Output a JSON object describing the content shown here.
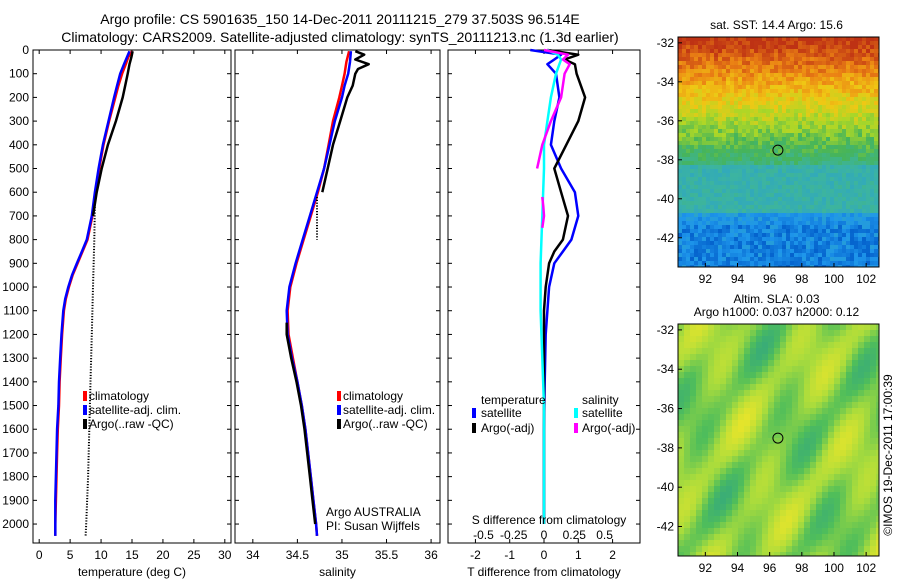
{
  "header": {
    "line1": "Argo profile: CS 5901635_150 14-Dec-2011 20111215_279 37.503S 96.514E",
    "line2": "Climatology: CARS2009. Satellite-adjusted climatology: synTS_20111213.nc (1.3d earlier)"
  },
  "credit": "©IMOS 19-Dec-2011 17:00:39",
  "colors": {
    "red": "#ff0000",
    "blue": "#0000ff",
    "black": "#000000",
    "cyan": "#00ffff",
    "magenta": "#ff00ff"
  },
  "chart_data": [
    {
      "type": "line",
      "xlabel": "temperature (deg C)",
      "ylim": [
        2080,
        0
      ],
      "xlim": [
        -1,
        31
      ],
      "xticks": [
        0,
        5,
        10,
        15,
        20,
        25,
        30
      ],
      "yticks": [
        0,
        100,
        200,
        300,
        400,
        500,
        600,
        700,
        800,
        900,
        1000,
        1100,
        1200,
        1300,
        1400,
        1500,
        1600,
        1700,
        1800,
        1900,
        2000
      ],
      "legend": [
        "climatology",
        "satellite-adj. clim.",
        "Argo(..raw -QC)"
      ],
      "series": [
        {
          "color": "red",
          "depth": [
            5,
            30,
            60,
            100,
            150,
            200,
            300,
            400,
            500,
            600,
            700,
            800,
            850,
            900,
            950,
            1000,
            1050,
            1100,
            1200,
            1300,
            1400,
            1500,
            1600,
            1700,
            1800,
            1900,
            2000,
            2050
          ],
          "values": [
            15.0,
            14.4,
            14.0,
            13.4,
            12.8,
            12.3,
            11.3,
            10.4,
            9.7,
            9.1,
            8.6,
            7.8,
            7.0,
            6.2,
            5.4,
            4.8,
            4.3,
            4.0,
            3.7,
            3.5,
            3.3,
            3.2,
            3.0,
            2.9,
            2.8,
            2.7,
            2.6,
            2.6
          ]
        },
        {
          "color": "blue",
          "depth": [
            5,
            30,
            60,
            100,
            150,
            200,
            300,
            400,
            500,
            600,
            700,
            800,
            850,
            900,
            950,
            1000,
            1050,
            1100,
            1200,
            1300,
            1400,
            1500,
            1600,
            1700,
            1800,
            1900,
            2000,
            2050
          ],
          "values": [
            14.6,
            14.2,
            13.7,
            13.1,
            12.6,
            12.1,
            11.2,
            10.3,
            9.6,
            9.0,
            8.5,
            7.7,
            6.9,
            6.1,
            5.3,
            4.7,
            4.2,
            3.9,
            3.6,
            3.4,
            3.2,
            3.1,
            2.9,
            2.8,
            2.7,
            2.6,
            2.6,
            2.6
          ]
        },
        {
          "color": "black",
          "depth": [
            5,
            30,
            60,
            100,
            150,
            200,
            300,
            400,
            500,
            600,
            700
          ],
          "values": [
            15.1,
            14.9,
            14.6,
            14.3,
            13.9,
            13.5,
            12.4,
            11.1,
            10.1,
            9.3,
            8.7
          ]
        },
        {
          "color": "black",
          "style": "dotted",
          "depth": [
            650,
            800,
            1000,
            1200,
            1400,
            1600,
            1800,
            2000,
            2050
          ],
          "values": [
            9.0,
            8.9,
            8.7,
            8.5,
            8.3,
            8.1,
            7.9,
            7.6,
            7.5
          ]
        }
      ]
    },
    {
      "type": "line",
      "xlabel": "salinity",
      "ylim": [
        2080,
        0
      ],
      "xlim": [
        33.8,
        36.1
      ],
      "xticks": [
        34,
        34.5,
        35,
        35.5,
        36
      ],
      "legend": [
        "climatology",
        "satellite-adj. clim.",
        "Argo(..raw -QC)"
      ],
      "annotation": [
        "Argo AUSTRALIA",
        "PI: Susan Wijffels"
      ],
      "series": [
        {
          "color": "red",
          "depth": [
            5,
            50,
            100,
            150,
            200,
            300,
            400,
            500,
            600,
            700,
            800,
            900,
            1000,
            1100,
            1200,
            1300,
            1400,
            1500,
            1600,
            1700,
            1800,
            1900,
            2000,
            2050
          ],
          "values": [
            35.08,
            35.05,
            35.03,
            35.0,
            34.97,
            34.9,
            34.85,
            34.8,
            34.73,
            34.65,
            34.57,
            34.49,
            34.42,
            34.39,
            34.4,
            34.45,
            34.5,
            34.55,
            34.59,
            34.62,
            34.65,
            34.68,
            34.71,
            34.72
          ]
        },
        {
          "color": "blue",
          "depth": [
            5,
            50,
            100,
            150,
            200,
            300,
            400,
            500,
            600,
            700,
            800,
            900,
            1000,
            1100,
            1200,
            1300,
            1400,
            1500,
            1600,
            1700,
            1800,
            1900,
            2000,
            2050
          ],
          "values": [
            35.1,
            35.09,
            35.07,
            35.03,
            35.0,
            34.92,
            34.86,
            34.8,
            34.72,
            34.64,
            34.56,
            34.48,
            34.41,
            34.38,
            34.39,
            34.44,
            34.5,
            34.55,
            34.59,
            34.62,
            34.65,
            34.68,
            34.71,
            34.72
          ]
        },
        {
          "color": "black",
          "depth": [
            5,
            20,
            40,
            60,
            80,
            100,
            150,
            200,
            300,
            400,
            500,
            600
          ],
          "values": [
            35.15,
            35.25,
            35.15,
            35.3,
            35.18,
            35.15,
            35.12,
            35.06,
            34.98,
            34.9,
            34.84,
            34.78
          ]
        },
        {
          "color": "black",
          "depth": [
            1150,
            1200,
            1300,
            1400,
            1500,
            1600,
            1700,
            1800,
            1900,
            2000
          ],
          "values": [
            34.38,
            34.38,
            34.43,
            34.49,
            34.54,
            34.58,
            34.61,
            34.64,
            34.67,
            34.7
          ]
        },
        {
          "color": "black",
          "style": "dotted",
          "depth": [
            620,
            700,
            800
          ],
          "values": [
            34.72,
            34.72,
            34.72
          ]
        }
      ]
    },
    {
      "type": "line",
      "xlabel": "T difference from climatology",
      "top_label": "S difference from climatology",
      "ylim": [
        2080,
        0
      ],
      "xlim": [
        -2.8,
        2.8
      ],
      "xticks": [
        "-2",
        "-1",
        "0",
        "1",
        "2"
      ],
      "top_ticks": [
        "-0.5",
        "-0.25",
        "0",
        "0.25",
        "0.5"
      ],
      "legend": {
        "temperature": [
          "satellite",
          "Argo(-adj)"
        ],
        "salinity": [
          "satellite",
          "Argo(-adj)"
        ]
      },
      "legend_headers": [
        "temperature",
        "salinity"
      ],
      "series": [
        {
          "name": "temperature satellite",
          "color": "blue",
          "depth": [
            0,
            20,
            40,
            60,
            100,
            200,
            300,
            400,
            500,
            600,
            700,
            800,
            850,
            900,
            1000,
            1100,
            1200,
            1400,
            1600,
            1800,
            2000
          ],
          "values": [
            -0.4,
            0.5,
            0.3,
            0.1,
            0.35,
            0.45,
            0.3,
            0.2,
            0.5,
            0.9,
            1.0,
            0.8,
            0.55,
            0.3,
            0.15,
            0.1,
            0.05,
            0.02,
            0.0,
            0.0,
            0.0
          ]
        },
        {
          "name": "temperature Argo(-adj)",
          "color": "black",
          "depth": [
            0,
            20,
            40,
            60,
            100,
            200,
            300,
            400,
            500,
            600,
            700,
            800,
            850,
            900,
            1000,
            1100,
            1200,
            1400,
            1600,
            1800,
            2000
          ],
          "values": [
            0.1,
            1.0,
            0.6,
            0.9,
            0.95,
            1.2,
            1.0,
            0.65,
            0.3,
            0.5,
            0.7,
            0.55,
            0.3,
            0.15,
            0.05,
            0.0,
            0.0,
            0.0,
            0.0,
            0.0,
            0.0
          ]
        },
        {
          "name": "salinity satellite",
          "color": "cyan",
          "depth": [
            0,
            20,
            40,
            60,
            100,
            200,
            300,
            400,
            500,
            700,
            900,
            1100,
            1300,
            1500,
            1700,
            2000
          ],
          "values": [
            0.1,
            0.4,
            0.5,
            0.45,
            0.35,
            0.2,
            0.1,
            0.0,
            0.0,
            -0.05,
            -0.1,
            -0.1,
            -0.05,
            0.0,
            0.0,
            0.0
          ]
        },
        {
          "name": "salinity Argo(-adj)",
          "color": "magenta",
          "depth": [
            0,
            20,
            40,
            60,
            100,
            200,
            300,
            400,
            500
          ],
          "values": [
            0.0,
            0.7,
            0.55,
            0.75,
            0.6,
            0.5,
            0.2,
            -0.05,
            -0.2
          ]
        },
        {
          "name": "salinity Argo(-adj)",
          "color": "magenta",
          "depth": [
            620,
            660,
            700,
            750
          ],
          "values": [
            -0.05,
            -0.02,
            0.0,
            -0.05
          ]
        }
      ]
    },
    {
      "type": "heatmap",
      "title": "sat. SST: 14.4 Argo: 15.6",
      "xticks": [
        92,
        94,
        96,
        98,
        100,
        102
      ],
      "yticks": [
        -32,
        -34,
        -36,
        -38,
        -40,
        -42
      ],
      "xlim": [
        90.3,
        102.8
      ],
      "ylim": [
        -43.5,
        -31.7
      ],
      "marker": {
        "lon": 96.514,
        "lat": -37.503
      }
    },
    {
      "type": "heatmap",
      "title": [
        "Altim. SLA: 0.03",
        "Argo h1000: 0.037 h2000: 0.12"
      ],
      "xticks": [
        92,
        94,
        96,
        98,
        100,
        102
      ],
      "yticks": [
        -32,
        -34,
        -36,
        -38,
        -40,
        -42
      ],
      "xlim": [
        90.3,
        102.8
      ],
      "ylim": [
        -43.5,
        -31.7
      ],
      "marker": {
        "lon": 96.514,
        "lat": -37.503
      }
    }
  ]
}
